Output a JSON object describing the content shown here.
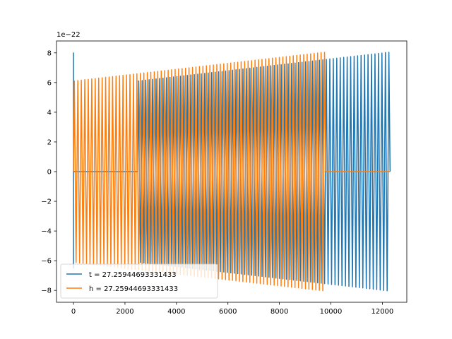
{
  "chart_data": {
    "type": "line",
    "title": "",
    "xlabel": "",
    "ylabel": "",
    "y_scale_label": "1e−22",
    "xlim": [
      -660,
      12950
    ],
    "ylim": [
      -8.8,
      8.8
    ],
    "x_ticks": [
      0,
      2000,
      4000,
      6000,
      8000,
      10000,
      12000
    ],
    "x_tick_labels": [
      "0",
      "2000",
      "4000",
      "6000",
      "8000",
      "10000",
      "12000"
    ],
    "y_ticks": [
      -8,
      -6,
      -4,
      -2,
      0,
      2,
      4,
      6,
      8
    ],
    "y_tick_labels": [
      "−8",
      "−6",
      "−4",
      "−2",
      "0",
      "2",
      "4",
      "6",
      "8"
    ],
    "grid": false,
    "legend_position": "lower-left",
    "series": [
      {
        "name": "t = 27.25944693331433",
        "color": "#1f77b4",
        "segments": [
          {
            "kind": "spike",
            "x": 0,
            "y_max": 8.0,
            "y_min": -6.5
          },
          {
            "kind": "flat",
            "x": [
              0,
              2500
            ],
            "y": 0
          },
          {
            "kind": "oscillation",
            "x": [
              2500,
              12300
            ],
            "amp": [
              6.1,
              8.05
            ],
            "period": 135
          }
        ]
      },
      {
        "name": "h = 27.25944693331433",
        "color": "#ff7f0e",
        "segments": [
          {
            "kind": "oscillation",
            "x": [
              0,
              9800
            ],
            "amp": [
              6.1,
              8.05
            ],
            "period": 135
          },
          {
            "kind": "flat",
            "x": [
              9800,
              12300
            ],
            "y": 0
          }
        ]
      }
    ]
  }
}
